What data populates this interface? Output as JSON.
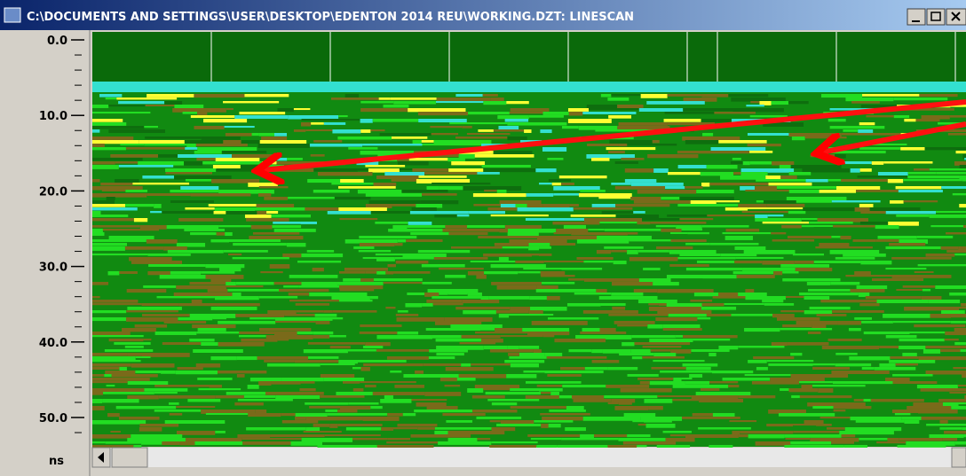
{
  "window": {
    "title": "C:\\DOCUMENTS AND SETTINGS\\USER\\DESKTOP\\EDENTON 2014 REU\\WORKING.DZT:  LINESCAN"
  },
  "depth_axis": {
    "ticks": [
      "0.0",
      "10.0",
      "20.0",
      "30.0",
      "40.0",
      "50.0"
    ],
    "unit": "ns"
  }
}
